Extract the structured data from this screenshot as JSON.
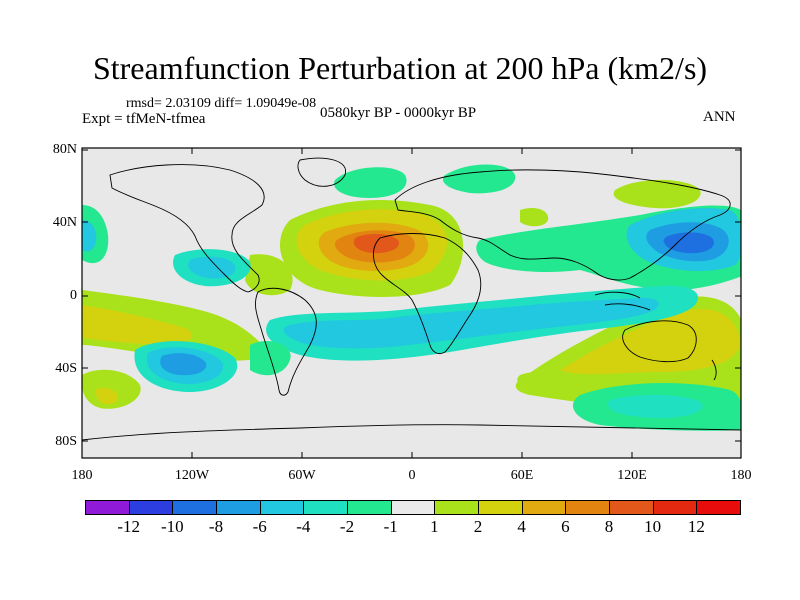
{
  "title": "Streamfunction Perturbation at 200 hPa (km2/s)",
  "stats": "rmsd= 2.03109 diff= 1.09049e-08",
  "experiment": "Expt = tfMeN-tfmea",
  "period": "0580kyr BP - 0000kyr BP",
  "season": "ANN",
  "lat_labels": [
    "80N",
    "40N",
    "0",
    "40S",
    "80S"
  ],
  "lon_labels": [
    "180",
    "120W",
    "60W",
    "0",
    "60E",
    "120E",
    "180"
  ],
  "colorbar": {
    "labels": [
      "-12",
      "-10",
      "-8",
      "-6",
      "-4",
      "-2",
      "-1",
      "1",
      "2",
      "4",
      "6",
      "8",
      "10",
      "12"
    ],
    "colors": [
      "#8f1ad8",
      "#2d3ee0",
      "#1e6fe0",
      "#1e9de2",
      "#22c7e0",
      "#1fe0c0",
      "#24e890",
      "#eaeaea",
      "#a9e21a",
      "#d4d20e",
      "#e0aa10",
      "#e28510",
      "#e2571a",
      "#e32a10",
      "#e80c0c"
    ]
  },
  "field": {
    "background": "#e8e8e8",
    "features": [
      {
        "level": "2",
        "color": "#a9e21a",
        "desc": "South Pacific west"
      },
      {
        "level": "-4",
        "color": "#22c7e0",
        "desc": "North Pacific east"
      },
      {
        "level": "6",
        "color": "#e0aa10",
        "desc": "North Africa high"
      },
      {
        "level": "-6",
        "color": "#1e9de2",
        "desc": "NW Pacific low"
      },
      {
        "level": "-2",
        "color": "#1fe0c0",
        "desc": "Southern subtropical band"
      },
      {
        "level": "4",
        "color": "#d4d20e",
        "desc": "Australia high"
      }
    ]
  }
}
